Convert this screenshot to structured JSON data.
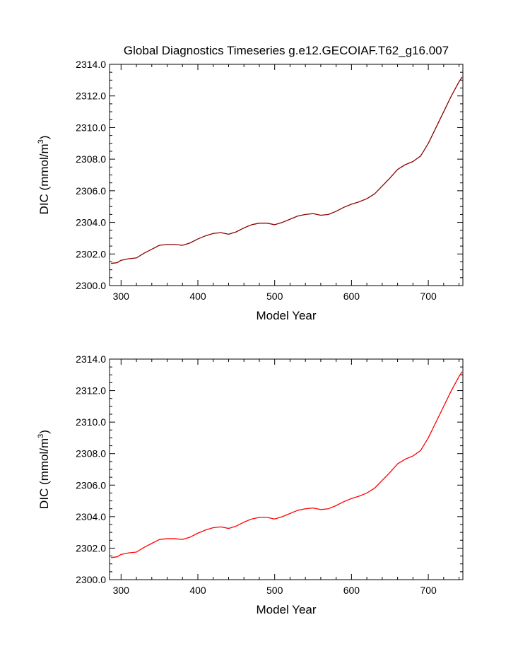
{
  "title": "Global Diagnostics Timeseries g.e12.GECOIAF.T62_g16.007",
  "chart_data": [
    {
      "type": "line",
      "xlabel": "Model Year",
      "ylabel_main": "DIC (mmol/m",
      "ylabel_sup": "3",
      "ylabel_close": ")",
      "xlim": [
        285,
        745
      ],
      "ylim": [
        2300.0,
        2314.0
      ],
      "xticks": [
        300,
        400,
        500,
        600,
        700
      ],
      "xtick_labels": [
        "300",
        "400",
        "500",
        "600",
        "700"
      ],
      "yticks": [
        2300,
        2302,
        2304,
        2306,
        2308,
        2310,
        2312,
        2314
      ],
      "ytick_labels": [
        "2300.0",
        "2302.0",
        "2304.0",
        "2306.0",
        "2308.0",
        "2310.0",
        "2312.0",
        "2314.0"
      ],
      "line_color": "#8b0000",
      "series": [
        {
          "x": [
            287,
            295,
            300,
            310,
            320,
            330,
            340,
            350,
            360,
            370,
            380,
            390,
            400,
            410,
            420,
            430,
            440,
            450,
            460,
            470,
            480,
            490,
            500,
            510,
            520,
            530,
            540,
            550,
            560,
            570,
            580,
            590,
            600,
            610,
            620,
            630,
            640,
            650,
            660,
            670,
            680,
            690,
            700,
            710,
            720,
            730,
            740,
            744
          ],
          "y": [
            2301.4,
            2301.45,
            2301.6,
            2301.7,
            2301.75,
            2302.05,
            2302.3,
            2302.55,
            2302.6,
            2302.6,
            2302.55,
            2302.7,
            2302.95,
            2303.15,
            2303.3,
            2303.35,
            2303.25,
            2303.4,
            2303.65,
            2303.85,
            2303.95,
            2303.95,
            2303.85,
            2304.0,
            2304.2,
            2304.4,
            2304.5,
            2304.55,
            2304.45,
            2304.5,
            2304.7,
            2304.95,
            2305.15,
            2305.3,
            2305.5,
            2305.8,
            2306.3,
            2306.8,
            2307.35,
            2307.65,
            2307.85,
            2308.2,
            2309.0,
            2310.0,
            2311.0,
            2312.0,
            2312.9,
            2313.2
          ]
        }
      ]
    },
    {
      "type": "line",
      "xlabel": "Model Year",
      "ylabel_main": "DIC (mmol/m",
      "ylabel_sup": "3",
      "ylabel_close": ")",
      "xlim": [
        285,
        745
      ],
      "ylim": [
        2300.0,
        2314.0
      ],
      "xticks": [
        300,
        400,
        500,
        600,
        700
      ],
      "xtick_labels": [
        "300",
        "400",
        "500",
        "600",
        "700"
      ],
      "yticks": [
        2300,
        2302,
        2304,
        2306,
        2308,
        2310,
        2312,
        2314
      ],
      "ytick_labels": [
        "2300.0",
        "2302.0",
        "2304.0",
        "2306.0",
        "2308.0",
        "2310.0",
        "2312.0",
        "2314.0"
      ],
      "line_color": "#ff0000",
      "series": [
        {
          "x": [
            287,
            295,
            300,
            310,
            320,
            330,
            340,
            350,
            360,
            370,
            380,
            390,
            400,
            410,
            420,
            430,
            440,
            450,
            460,
            470,
            480,
            490,
            500,
            510,
            520,
            530,
            540,
            550,
            560,
            570,
            580,
            590,
            600,
            610,
            620,
            630,
            640,
            650,
            660,
            670,
            680,
            690,
            700,
            710,
            720,
            730,
            740,
            744
          ],
          "y": [
            2301.4,
            2301.45,
            2301.6,
            2301.7,
            2301.75,
            2302.05,
            2302.3,
            2302.55,
            2302.6,
            2302.6,
            2302.55,
            2302.7,
            2302.95,
            2303.15,
            2303.3,
            2303.35,
            2303.25,
            2303.4,
            2303.65,
            2303.85,
            2303.95,
            2303.95,
            2303.85,
            2304.0,
            2304.2,
            2304.4,
            2304.5,
            2304.55,
            2304.45,
            2304.5,
            2304.7,
            2304.95,
            2305.15,
            2305.3,
            2305.5,
            2305.8,
            2306.3,
            2306.8,
            2307.35,
            2307.65,
            2307.85,
            2308.2,
            2309.0,
            2310.0,
            2311.0,
            2312.0,
            2312.9,
            2313.2
          ]
        }
      ]
    }
  ]
}
